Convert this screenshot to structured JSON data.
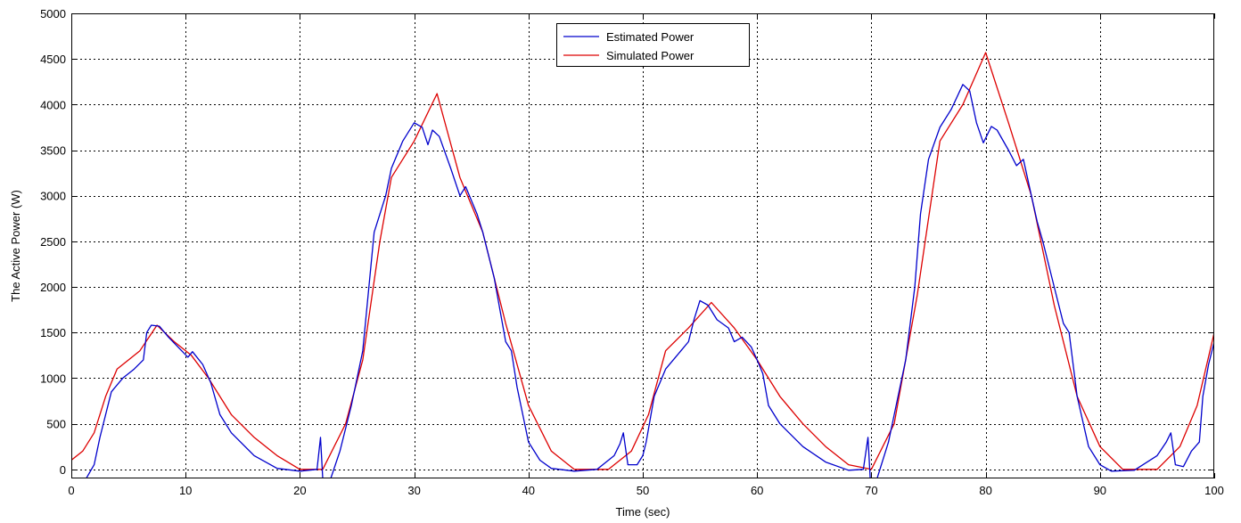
{
  "chart_data": {
    "type": "line",
    "title": "",
    "xlabel": "Time (sec)",
    "ylabel": "The Active Power (W)",
    "xlim": [
      0,
      100
    ],
    "ylim": [
      -100,
      5000
    ],
    "xticks": [
      0,
      10,
      20,
      30,
      40,
      50,
      60,
      70,
      80,
      90,
      100
    ],
    "yticks": [
      0,
      500,
      1000,
      1500,
      2000,
      2500,
      3000,
      3500,
      4000,
      4500,
      5000
    ],
    "grid": true,
    "legend_position": "top-center",
    "series": [
      {
        "name": "Estimated Power",
        "color": "#0000cc",
        "points": [
          [
            1.3,
            -100
          ],
          [
            2.0,
            50
          ],
          [
            2.5,
            350
          ],
          [
            3.5,
            850
          ],
          [
            4.5,
            1000
          ],
          [
            5.5,
            1100
          ],
          [
            6.3,
            1200
          ],
          [
            6.6,
            1500
          ],
          [
            7.0,
            1580
          ],
          [
            7.7,
            1570
          ],
          [
            8.5,
            1450
          ],
          [
            9.5,
            1320
          ],
          [
            10.2,
            1230
          ],
          [
            10.6,
            1290
          ],
          [
            11.5,
            1150
          ],
          [
            12.2,
            950
          ],
          [
            13.0,
            600
          ],
          [
            14.0,
            400
          ],
          [
            16.0,
            150
          ],
          [
            18.0,
            10
          ],
          [
            20.0,
            -20
          ],
          [
            21.5,
            0
          ],
          [
            21.8,
            350
          ],
          [
            22.0,
            -100
          ],
          [
            22.7,
            -100
          ],
          [
            23.5,
            200
          ],
          [
            24.5,
            700
          ],
          [
            25.5,
            1300
          ],
          [
            26.5,
            2600
          ],
          [
            27.5,
            3000
          ],
          [
            28.0,
            3300
          ],
          [
            29.0,
            3600
          ],
          [
            30.0,
            3800
          ],
          [
            30.7,
            3750
          ],
          [
            31.2,
            3560
          ],
          [
            31.6,
            3720
          ],
          [
            32.2,
            3650
          ],
          [
            33.2,
            3300
          ],
          [
            34.0,
            3000
          ],
          [
            34.5,
            3100
          ],
          [
            35.5,
            2800
          ],
          [
            36.0,
            2600
          ],
          [
            37.0,
            2100
          ],
          [
            38.0,
            1400
          ],
          [
            38.5,
            1300
          ],
          [
            39.0,
            900
          ],
          [
            40.0,
            300
          ],
          [
            41.0,
            100
          ],
          [
            42.0,
            10
          ],
          [
            44.0,
            -20
          ],
          [
            46.0,
            0
          ],
          [
            47.5,
            150
          ],
          [
            48.0,
            280
          ],
          [
            48.3,
            400
          ],
          [
            48.7,
            50
          ],
          [
            49.5,
            50
          ],
          [
            50.0,
            150
          ],
          [
            50.3,
            300
          ],
          [
            51.0,
            800
          ],
          [
            52.0,
            1100
          ],
          [
            53.0,
            1250
          ],
          [
            54.0,
            1400
          ],
          [
            54.5,
            1650
          ],
          [
            55.0,
            1850
          ],
          [
            55.7,
            1800
          ],
          [
            56.5,
            1640
          ],
          [
            57.5,
            1550
          ],
          [
            58.0,
            1400
          ],
          [
            58.7,
            1450
          ],
          [
            59.5,
            1340
          ],
          [
            60.0,
            1200
          ],
          [
            60.5,
            1050
          ],
          [
            61.0,
            700
          ],
          [
            62.0,
            500
          ],
          [
            64.0,
            250
          ],
          [
            66.0,
            80
          ],
          [
            68.0,
            -10
          ],
          [
            69.3,
            0
          ],
          [
            69.7,
            350
          ],
          [
            69.9,
            -100
          ],
          [
            70.5,
            -100
          ],
          [
            71.5,
            300
          ],
          [
            73.0,
            1200
          ],
          [
            73.8,
            2000
          ],
          [
            74.3,
            2800
          ],
          [
            75.0,
            3400
          ],
          [
            76.0,
            3750
          ],
          [
            77.0,
            3950
          ],
          [
            78.0,
            4220
          ],
          [
            78.6,
            4150
          ],
          [
            79.2,
            3800
          ],
          [
            79.8,
            3580
          ],
          [
            80.5,
            3760
          ],
          [
            81.0,
            3720
          ],
          [
            82.0,
            3500
          ],
          [
            82.7,
            3330
          ],
          [
            83.3,
            3400
          ],
          [
            84.0,
            3000
          ],
          [
            84.5,
            2720
          ],
          [
            85.0,
            2500
          ],
          [
            86.0,
            2000
          ],
          [
            86.8,
            1600
          ],
          [
            87.3,
            1500
          ],
          [
            88.0,
            800
          ],
          [
            89.0,
            250
          ],
          [
            90.0,
            50
          ],
          [
            91.0,
            -20
          ],
          [
            93.0,
            -10
          ],
          [
            95.0,
            150
          ],
          [
            95.8,
            300
          ],
          [
            96.2,
            400
          ],
          [
            96.6,
            50
          ],
          [
            97.3,
            30
          ],
          [
            98.0,
            200
          ],
          [
            98.7,
            300
          ],
          [
            99.0,
            800
          ],
          [
            99.5,
            1150
          ],
          [
            100.0,
            1400
          ]
        ]
      },
      {
        "name": "Simulated Power",
        "color": "#dd0000",
        "points": [
          [
            0.0,
            100
          ],
          [
            1.0,
            200
          ],
          [
            2.0,
            400
          ],
          [
            3.0,
            800
          ],
          [
            4.0,
            1100
          ],
          [
            6.0,
            1300
          ],
          [
            7.5,
            1580
          ],
          [
            9.0,
            1400
          ],
          [
            10.5,
            1250
          ],
          [
            12.0,
            1000
          ],
          [
            14.0,
            600
          ],
          [
            16.0,
            350
          ],
          [
            18.0,
            150
          ],
          [
            20.0,
            0
          ],
          [
            22.0,
            0
          ],
          [
            24.0,
            500
          ],
          [
            25.5,
            1200
          ],
          [
            27.0,
            2500
          ],
          [
            28.0,
            3200
          ],
          [
            30.0,
            3600
          ],
          [
            32.0,
            4120
          ],
          [
            34.0,
            3200
          ],
          [
            36.0,
            2600
          ],
          [
            38.0,
            1600
          ],
          [
            40.0,
            700
          ],
          [
            42.0,
            200
          ],
          [
            44.0,
            0
          ],
          [
            47.0,
            0
          ],
          [
            49.0,
            200
          ],
          [
            50.5,
            600
          ],
          [
            52.0,
            1300
          ],
          [
            54.0,
            1550
          ],
          [
            56.0,
            1830
          ],
          [
            58.0,
            1550
          ],
          [
            60.0,
            1200
          ],
          [
            62.0,
            800
          ],
          [
            64.0,
            500
          ],
          [
            66.0,
            250
          ],
          [
            68.0,
            50
          ],
          [
            70.0,
            0
          ],
          [
            72.0,
            500
          ],
          [
            74.0,
            1900
          ],
          [
            76.0,
            3600
          ],
          [
            78.0,
            4000
          ],
          [
            80.0,
            4570
          ],
          [
            82.0,
            3800
          ],
          [
            84.0,
            3000
          ],
          [
            86.0,
            1800
          ],
          [
            88.0,
            800
          ],
          [
            90.0,
            250
          ],
          [
            92.0,
            0
          ],
          [
            95.0,
            0
          ],
          [
            97.0,
            250
          ],
          [
            98.5,
            700
          ],
          [
            100.0,
            1500
          ]
        ]
      }
    ]
  }
}
